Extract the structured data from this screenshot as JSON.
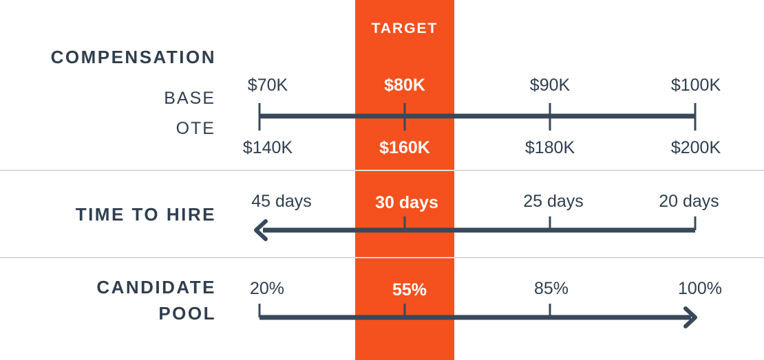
{
  "target": {
    "label": "TARGET",
    "color": "#f4511e"
  },
  "compensation": {
    "title": "COMPENSATION",
    "base_label": "BASE",
    "ote_label": "OTE",
    "base_ticks": [
      "$70K",
      "$80K",
      "$90K",
      "$100K"
    ],
    "ote_ticks": [
      "$140K",
      "$160K",
      "$180K",
      "$200K"
    ],
    "highlight_index": 1
  },
  "time_to_hire": {
    "title": "TIME TO HIRE",
    "ticks": [
      "45 days",
      "30 days",
      "25 days",
      "20 days"
    ],
    "highlight_index": 1,
    "arrow_direction": "left"
  },
  "candidate_pool": {
    "title_line1": "CANDIDATE",
    "title_line2": "POOL",
    "ticks": [
      "20%",
      "55%",
      "85%",
      "100%"
    ],
    "highlight_index": 1,
    "arrow_direction": "right"
  },
  "colors": {
    "text": "#2f3e4e",
    "line": "#37495a",
    "divider": "#d9dcdf",
    "highlight_text": "#ffffff"
  }
}
